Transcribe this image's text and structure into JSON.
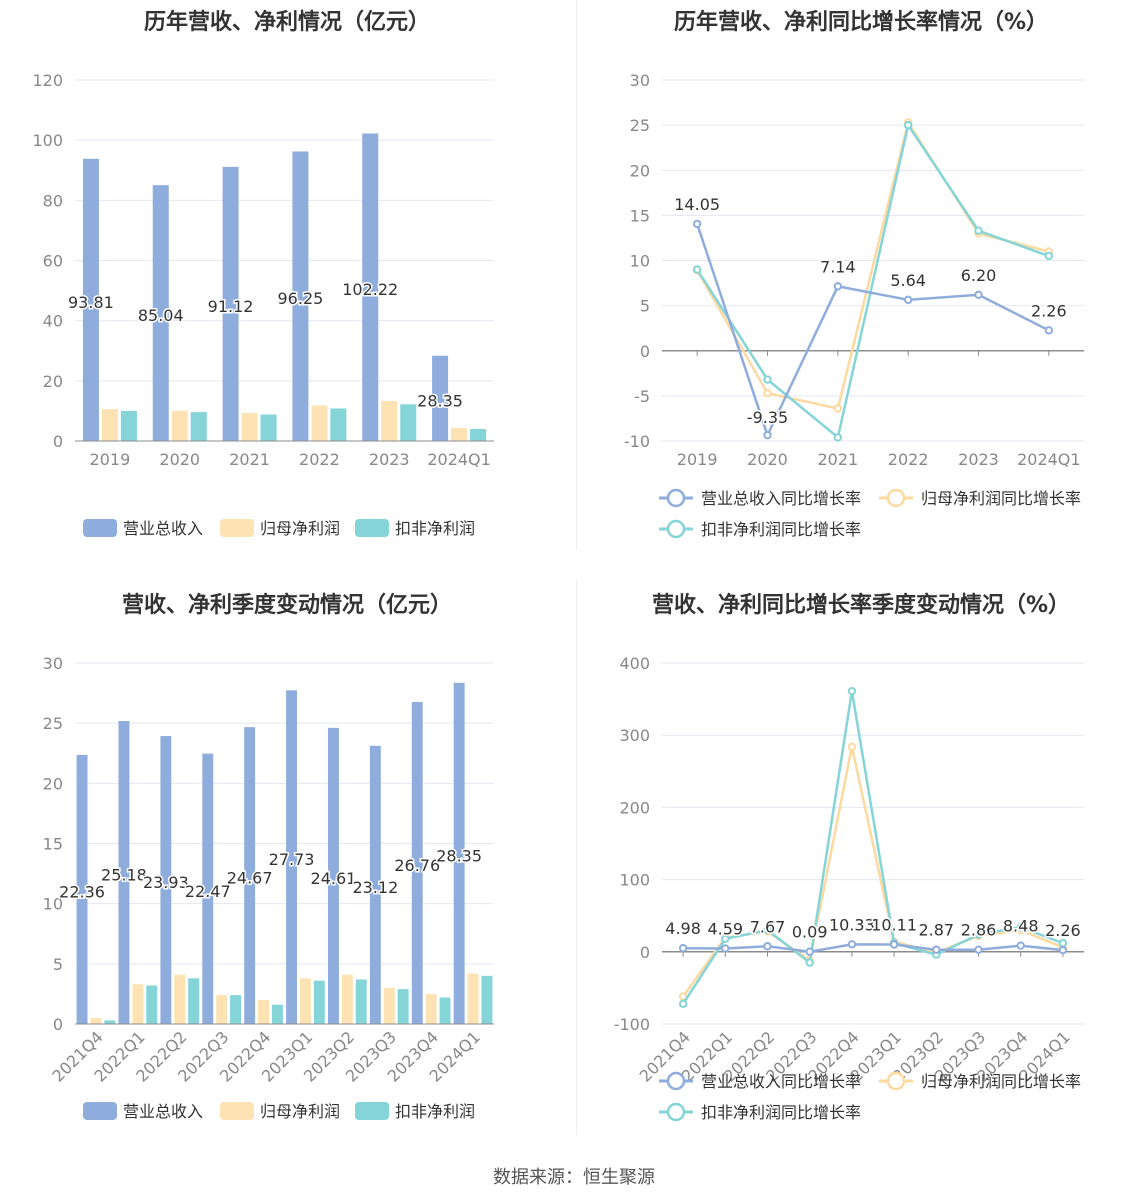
{
  "source": "数据来源：恒生聚源",
  "colors": {
    "revenue": "#8eacdc",
    "net_profit": "#fde2b4",
    "deducted_profit": "#84d4d8",
    "revenue_line": "#8eacdc",
    "net_profit_line": "#fdd9a0",
    "deducted_line": "#84d4d8",
    "grid": "#e3e7f0",
    "axis_text": "#888888"
  },
  "chart_data": [
    {
      "id": "annual_values",
      "type": "bar",
      "title": "历年营收、净利情况（亿元）",
      "categories": [
        "2019",
        "2020",
        "2021",
        "2022",
        "2023",
        "2024Q1"
      ],
      "ylim": [
        0,
        120
      ],
      "yticks": [
        0,
        20,
        40,
        60,
        80,
        100,
        120
      ],
      "legend_position": "bottom",
      "series": [
        {
          "name": "营业总收入",
          "values": [
            93.81,
            85.04,
            91.12,
            96.25,
            102.22,
            28.35
          ],
          "labels": [
            "93.81",
            "85.04",
            "91.12",
            "96.25",
            "102.22",
            "28.35"
          ]
        },
        {
          "name": "归母净利润",
          "values": [
            10.6,
            10.0,
            9.3,
            11.8,
            13.3,
            4.3
          ]
        },
        {
          "name": "扣非净利润",
          "values": [
            10.0,
            9.6,
            8.8,
            10.8,
            12.2,
            4.0
          ]
        }
      ]
    },
    {
      "id": "annual_growth",
      "type": "line",
      "title": "历年营收、净利同比增长率情况（%）",
      "categories": [
        "2019",
        "2020",
        "2021",
        "2022",
        "2023",
        "2024Q1"
      ],
      "ylim": [
        -10,
        30
      ],
      "yticks": [
        -10,
        -5,
        0,
        5,
        10,
        15,
        20,
        25,
        30
      ],
      "legend_position": "bottom",
      "series": [
        {
          "name": "营业总收入同比增长率",
          "values": [
            14.05,
            -9.35,
            7.14,
            5.64,
            6.2,
            2.26
          ],
          "labels": [
            "14.05",
            "-9.35",
            "7.14",
            "5.64",
            "6.20",
            "2.26"
          ]
        },
        {
          "name": "归母净利润同比增长率",
          "values": [
            8.9,
            -4.7,
            -6.4,
            25.3,
            13.0,
            11.0
          ]
        },
        {
          "name": "扣非净利润同比增长率",
          "values": [
            9.0,
            -3.2,
            -9.6,
            25.0,
            13.3,
            10.5
          ]
        }
      ]
    },
    {
      "id": "quarterly_values",
      "type": "bar",
      "title": "营收、净利季度变动情况（亿元）",
      "categories": [
        "2021Q4",
        "2022Q1",
        "2022Q2",
        "2022Q3",
        "2022Q4",
        "2023Q1",
        "2023Q2",
        "2023Q3",
        "2023Q4",
        "2024Q1"
      ],
      "ylim": [
        0,
        30
      ],
      "yticks": [
        0,
        5,
        10,
        15,
        20,
        25,
        30
      ],
      "legend_position": "bottom",
      "series": [
        {
          "name": "营业总收入",
          "values": [
            22.36,
            25.18,
            23.93,
            22.47,
            24.67,
            27.73,
            24.61,
            23.12,
            26.76,
            28.35
          ],
          "labels": [
            "22.36",
            "25.18",
            "23.93",
            "22.47",
            "24.67",
            "27.73",
            "24.61",
            "23.12",
            "26.76",
            "28.35"
          ]
        },
        {
          "name": "归母净利润",
          "values": [
            0.5,
            3.3,
            4.1,
            2.4,
            2.0,
            3.8,
            4.1,
            3.0,
            2.5,
            4.2
          ]
        },
        {
          "name": "扣非净利润",
          "values": [
            0.3,
            3.2,
            3.8,
            2.4,
            1.6,
            3.6,
            3.7,
            2.9,
            2.2,
            4.0
          ]
        }
      ]
    },
    {
      "id": "quarterly_growth",
      "type": "line",
      "title": "营收、净利同比增长率季度变动情况（%）",
      "categories": [
        "2021Q4",
        "2022Q1",
        "2022Q2",
        "2022Q3",
        "2022Q4",
        "2023Q1",
        "2023Q2",
        "2023Q3",
        "2023Q4",
        "2024Q1"
      ],
      "ylim": [
        -100,
        400
      ],
      "yticks": [
        -100,
        0,
        100,
        200,
        300,
        400
      ],
      "legend_position": "bottom",
      "series": [
        {
          "name": "营业总收入同比增长率",
          "values": [
            4.98,
            4.59,
            7.67,
            0.09,
            10.33,
            10.11,
            2.87,
            2.86,
            8.48,
            2.26
          ],
          "labels": [
            "4.98",
            "4.59",
            "7.67",
            "0.09",
            "10.33",
            "10.11",
            "2.87",
            "2.86",
            "8.48",
            "2.26"
          ]
        },
        {
          "name": "归母净利润同比增长率",
          "values": [
            -62,
            20,
            28,
            -12,
            284,
            14,
            -1,
            22,
            30,
            6
          ]
        },
        {
          "name": "扣非净利润同比增长率",
          "values": [
            -72,
            18,
            30,
            -15,
            361,
            12,
            -4,
            24,
            34,
            12
          ]
        }
      ]
    }
  ]
}
